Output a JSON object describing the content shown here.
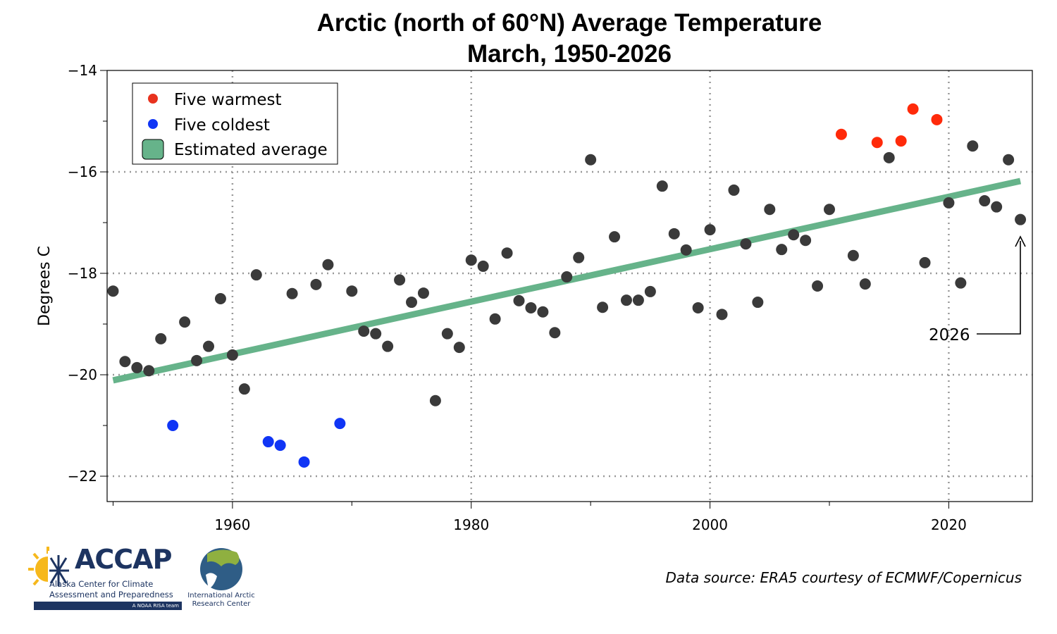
{
  "chart_data": {
    "type": "scatter",
    "title": "Arctic (north of 60°N) Average Temperature",
    "subtitle": "March, 1950-2026",
    "xlabel": "",
    "ylabel": "Degrees C",
    "xlim": [
      1949.5,
      2027
    ],
    "ylim": [
      -22.5,
      -14
    ],
    "xticks": [
      1960,
      1980,
      2000,
      2020
    ],
    "xtick_labels": [
      "1960",
      "1980",
      "2000",
      "2020"
    ],
    "yticks": [
      -14,
      -16,
      -18,
      -20,
      -22
    ],
    "ytick_labels": [
      "−14",
      "−16",
      "−18",
      "−20",
      "−22"
    ],
    "grid": true,
    "legend_position": "top-left",
    "legend": [
      {
        "label": "Five warmest",
        "color": "#e8321e",
        "kind": "dot"
      },
      {
        "label": "Five coldest",
        "color": "#1035f5",
        "kind": "dot"
      },
      {
        "label": "Estimated average",
        "color": "#66b38a",
        "kind": "box"
      }
    ],
    "colors": {
      "normal": "#3a3a3a",
      "warmest": "#ff2a0a",
      "coldest": "#1035f5",
      "trend": "#66b38a"
    },
    "warmest_years": [
      2011,
      2014,
      2016,
      2017,
      2019
    ],
    "coldest_years": [
      1955,
      1963,
      1964,
      1966,
      1969
    ],
    "x": [
      1950,
      1951,
      1952,
      1953,
      1954,
      1955,
      1956,
      1957,
      1958,
      1959,
      1960,
      1961,
      1962,
      1963,
      1964,
      1965,
      1966,
      1967,
      1968,
      1969,
      1970,
      1971,
      1972,
      1973,
      1974,
      1975,
      1976,
      1977,
      1978,
      1979,
      1980,
      1981,
      1982,
      1983,
      1984,
      1985,
      1986,
      1987,
      1988,
      1989,
      1990,
      1991,
      1992,
      1993,
      1994,
      1995,
      1996,
      1997,
      1998,
      1999,
      2000,
      2001,
      2002,
      2003,
      2004,
      2005,
      2006,
      2007,
      2008,
      2009,
      2010,
      2011,
      2012,
      2013,
      2014,
      2015,
      2016,
      2017,
      2018,
      2019,
      2020,
      2021,
      2022,
      2023,
      2024,
      2025,
      2026
    ],
    "y": [
      -18.35,
      -19.74,
      -19.86,
      -19.92,
      -19.29,
      -21.0,
      -18.96,
      -19.72,
      -19.44,
      -18.5,
      -19.61,
      -20.28,
      -18.03,
      -21.32,
      -21.39,
      -18.4,
      -21.72,
      -18.22,
      -17.83,
      -20.96,
      -18.35,
      -19.14,
      -19.19,
      -19.44,
      -18.13,
      -18.57,
      -18.39,
      -20.51,
      -19.19,
      -19.46,
      -17.74,
      -17.86,
      -18.9,
      -17.6,
      -18.54,
      -18.68,
      -18.76,
      -19.17,
      -18.07,
      -17.69,
      -15.76,
      -18.67,
      -17.28,
      -18.53,
      -18.53,
      -18.36,
      -16.28,
      -17.22,
      -17.54,
      -18.68,
      -17.14,
      -18.81,
      -16.36,
      -17.42,
      -18.57,
      -16.74,
      -17.53,
      -17.24,
      -17.35,
      -18.25,
      -16.74,
      -15.26,
      -17.65,
      -18.21,
      -15.42,
      -15.72,
      -15.39,
      -14.76,
      -17.79,
      -14.97,
      -16.61,
      -18.19,
      -15.49,
      -16.57,
      -16.69,
      -15.76,
      -16.94
    ],
    "trend": {
      "x": [
        1950,
        2026
      ],
      "y": [
        -20.11,
        -16.18
      ]
    },
    "annotations": [
      {
        "text": "2026",
        "points_to_year": 2026
      }
    ]
  },
  "footer": {
    "source": "Data source: ERA5 courtesy of ECMWF/Copernicus",
    "accap_logo": {
      "name": "ACCAP",
      "line1": "Alaska Center for Climate",
      "line2": "Assessment and Preparedness",
      "tagline": "A NOAA RISA team"
    },
    "iarc_logo": {
      "line1": "International Arctic",
      "line2": "Research Center"
    }
  }
}
